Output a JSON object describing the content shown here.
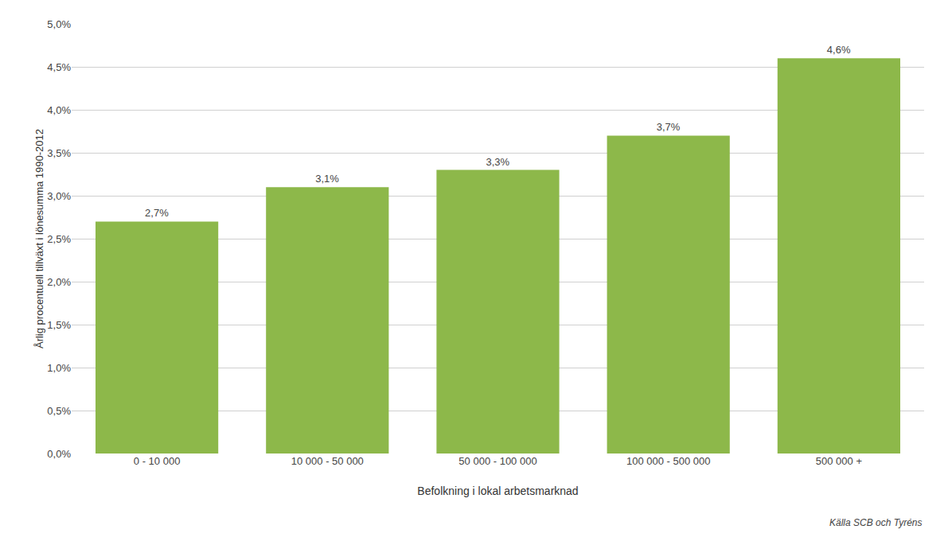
{
  "chart_data": {
    "type": "bar",
    "categories": [
      "0 - 10 000",
      "10 000 - 50 000",
      "50 000 - 100 000",
      "100 000 - 500 000",
      "500 000 +"
    ],
    "values": [
      2.7,
      3.1,
      3.3,
      3.7,
      4.6
    ],
    "value_labels": [
      "2,7%",
      "3,1%",
      "3,3%",
      "3,7%",
      "4,6%"
    ],
    "data_labels": true,
    "color": "#8db84a",
    "xlabel": "Befolkning i lokal arbetsmarknad",
    "ylabel": "Årlig procentuell tillväxt i lönesumma 1990-2012",
    "annotations": [
      "Källa SCB och Tyréns"
    ],
    "ylim": [
      0,
      5
    ],
    "yticks": [
      {
        "value": 0,
        "label": "0,0%"
      },
      {
        "value": 0.5,
        "label": "0,5%"
      },
      {
        "value": 1,
        "label": "1,0%"
      },
      {
        "value": 1.5,
        "label": "1,5%"
      },
      {
        "value": 2,
        "label": "2,0%"
      },
      {
        "value": 2.5,
        "label": "2,5%"
      },
      {
        "value": 3,
        "label": "3,0%"
      },
      {
        "value": 3.5,
        "label": "3,5%"
      },
      {
        "value": 4,
        "label": "4,0%"
      },
      {
        "value": 4.5,
        "label": "4,5%"
      },
      {
        "value": 5,
        "label": "5,0%"
      }
    ],
    "grid": true
  }
}
